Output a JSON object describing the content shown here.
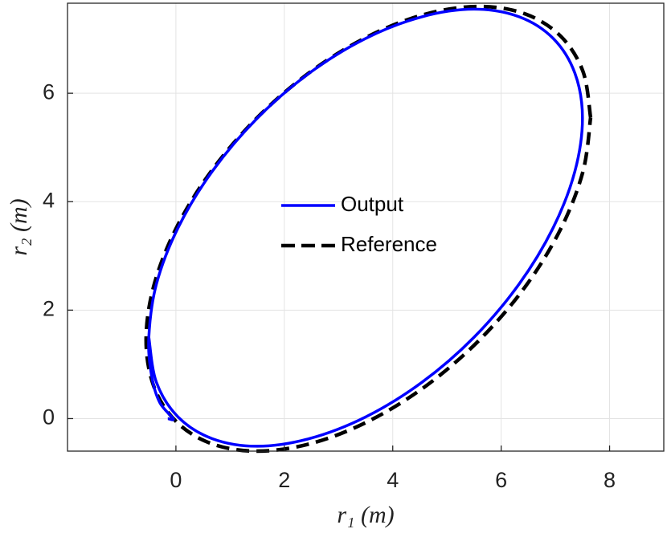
{
  "chart_data": {
    "type": "line",
    "x_label": "r₁ (m)",
    "y_label": "r₂ (m)",
    "xlim": [
      -2,
      9
    ],
    "ylim": [
      -0.6,
      7.66
    ],
    "xticks": [
      0,
      2,
      4,
      6,
      8
    ],
    "yticks": [
      0,
      2,
      4,
      6
    ],
    "grid": true,
    "legend_location": "center",
    "series": [
      {
        "name": "Output",
        "color": "#0000ff",
        "dash": "solid",
        "x": [
          -0.15,
          -0.05,
          -0.3,
          -0.45,
          -0.5,
          -0.36,
          0.04,
          0.67,
          1.5,
          2.46,
          3.5,
          4.54,
          5.5,
          6.33,
          6.96,
          7.36,
          7.5,
          7.36,
          6.96,
          6.33,
          5.5,
          4.54,
          3.5,
          2.46,
          1.5,
          0.67,
          0.04,
          -0.36,
          -0.5
        ],
        "values": [
          0.0,
          0.0,
          0.3,
          0.8,
          1.5,
          2.48,
          3.52,
          4.56,
          5.54,
          6.37,
          7.01,
          7.41,
          7.55,
          7.41,
          7.01,
          6.37,
          5.54,
          4.56,
          3.52,
          2.48,
          1.5,
          0.67,
          0.03,
          -0.37,
          -0.51,
          -0.37,
          0.03,
          0.67,
          1.5
        ]
      },
      {
        "name": "Reference",
        "color": "#000000",
        "dash": "dashed",
        "x": [
          7.65,
          7.51,
          7.1,
          6.45,
          5.6,
          4.61,
          3.55,
          2.49,
          1.5,
          0.65,
          0.0,
          -0.41,
          -0.55,
          -0.41,
          0.0,
          0.65,
          1.5,
          2.49,
          3.55,
          4.61,
          5.6,
          6.45,
          7.1,
          7.51,
          7.65
        ],
        "values": [
          5.55,
          6.4,
          7.05,
          7.46,
          7.6,
          7.46,
          7.05,
          6.4,
          5.55,
          4.56,
          3.5,
          2.44,
          1.45,
          0.6,
          -0.05,
          -0.46,
          -0.6,
          -0.46,
          -0.05,
          0.6,
          1.45,
          2.44,
          3.5,
          4.56,
          5.55
        ]
      }
    ]
  }
}
